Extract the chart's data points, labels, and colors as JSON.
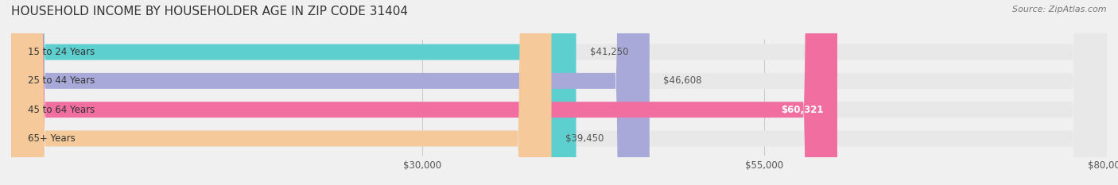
{
  "title": "HOUSEHOLD INCOME BY HOUSEHOLDER AGE IN ZIP CODE 31404",
  "source": "Source: ZipAtlas.com",
  "categories": [
    "15 to 24 Years",
    "25 to 44 Years",
    "45 to 64 Years",
    "65+ Years"
  ],
  "values": [
    41250,
    46608,
    60321,
    39450
  ],
  "bar_colors": [
    "#5ECFCF",
    "#A9A9D9",
    "#F06FA0",
    "#F5C99A"
  ],
  "background_color": "#f0f0f0",
  "bar_bg_color": "#e8e8e8",
  "xlim_min": 0,
  "xlim_max": 80000,
  "xticks": [
    30000,
    55000,
    80000
  ],
  "xtick_labels": [
    "$30,000",
    "$55,000",
    "$80,000"
  ],
  "value_labels": [
    "$41,250",
    "$46,608",
    "$60,321",
    "$39,450"
  ],
  "title_fontsize": 11,
  "source_fontsize": 8,
  "label_fontsize": 8.5,
  "bar_height": 0.55
}
